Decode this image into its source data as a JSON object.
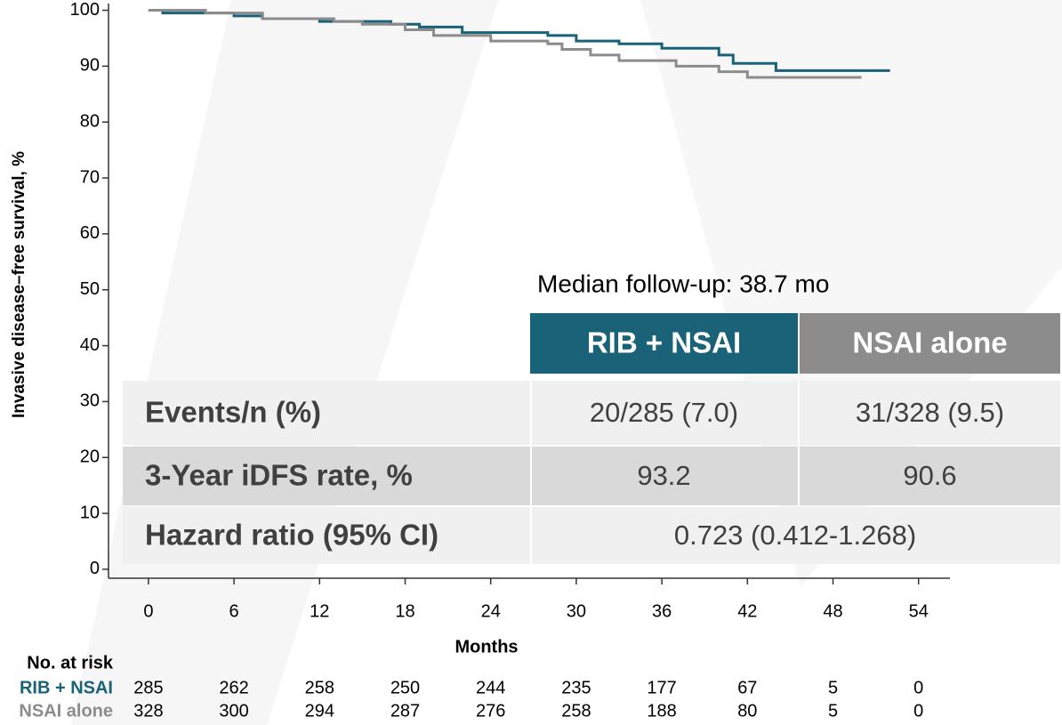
{
  "chart_data": {
    "type": "step",
    "ylabel": "Invasive disease–free survival, %",
    "xlabel": "Months",
    "xlim": [
      -2.8,
      56.2
    ],
    "ylim": [
      -1.6,
      101.2
    ],
    "xticks": [
      0,
      6,
      12,
      18,
      24,
      30,
      36,
      42,
      48,
      54
    ],
    "yticks": [
      0,
      10,
      20,
      30,
      40,
      50,
      60,
      70,
      80,
      90,
      100
    ],
    "series": [
      {
        "name": "RIB + NSAI",
        "color": "#1a6277",
        "x": [
          0,
          1,
          6,
          8,
          12,
          17,
          19,
          22,
          28,
          30,
          33,
          36,
          40,
          41,
          44,
          52
        ],
        "values": [
          100,
          99.5,
          99,
          98.5,
          98,
          97.5,
          97,
          96,
          95.5,
          94.5,
          94,
          93.2,
          92,
          90.5,
          89.2,
          89.2
        ]
      },
      {
        "name": "NSAI alone",
        "color": "#8c8c8c",
        "x": [
          0,
          4,
          8,
          13,
          15,
          18,
          20,
          24,
          28,
          29,
          31,
          33,
          37,
          40,
          42,
          50
        ],
        "values": [
          100,
          99.5,
          98.5,
          98,
          97.5,
          96.5,
          95.5,
          94.5,
          94,
          93,
          92,
          91,
          90,
          89,
          88,
          88
        ]
      }
    ],
    "annotation": "Median follow-up: 38.7 mo",
    "summary_table": {
      "header": [
        "RIB + NSAI",
        "NSAI alone"
      ],
      "rows": [
        [
          "Events/n (%)",
          "20/285 (7.0)",
          "31/328 (9.5)"
        ],
        [
          "3-Year iDFS rate, %",
          "93.2",
          "90.6"
        ],
        [
          "Hazard ratio (95% CI)",
          "0.723 (0.412-1.268)"
        ]
      ]
    },
    "risk_table": {
      "title": "No. at risk",
      "rows": [
        {
          "name": "RIB + NSAI",
          "values": [
            285,
            262,
            258,
            250,
            244,
            235,
            177,
            67,
            5,
            0
          ]
        },
        {
          "name": "NSAI alone",
          "values": [
            328,
            300,
            294,
            287,
            276,
            258,
            188,
            80,
            5,
            0
          ]
        }
      ]
    }
  }
}
